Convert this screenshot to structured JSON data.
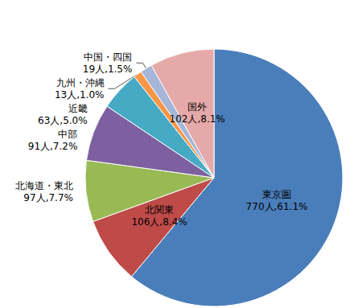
{
  "chart_data": {
    "type": "pie",
    "categories": [
      "東京圏",
      "北関東",
      "北海道・東北",
      "中部",
      "近畿",
      "九州・沖縄",
      "中国・四国",
      "国外"
    ],
    "values": [
      770,
      106,
      97,
      91,
      63,
      13,
      19,
      102
    ],
    "value_labels": [
      "770人,61.1%",
      "106人,8.4%",
      "97人,7.7%",
      "91人,7.2%",
      "63人,5.0%",
      "13人,1.0%",
      "19人,1.5%",
      "102人,8.1%"
    ],
    "colors": [
      "#4a7ebb",
      "#be4b48",
      "#98b954",
      "#7d60a0",
      "#46aac5",
      "#f79646",
      "#a5b6d8",
      "#e6a9a9"
    ],
    "data_labels": true
  }
}
